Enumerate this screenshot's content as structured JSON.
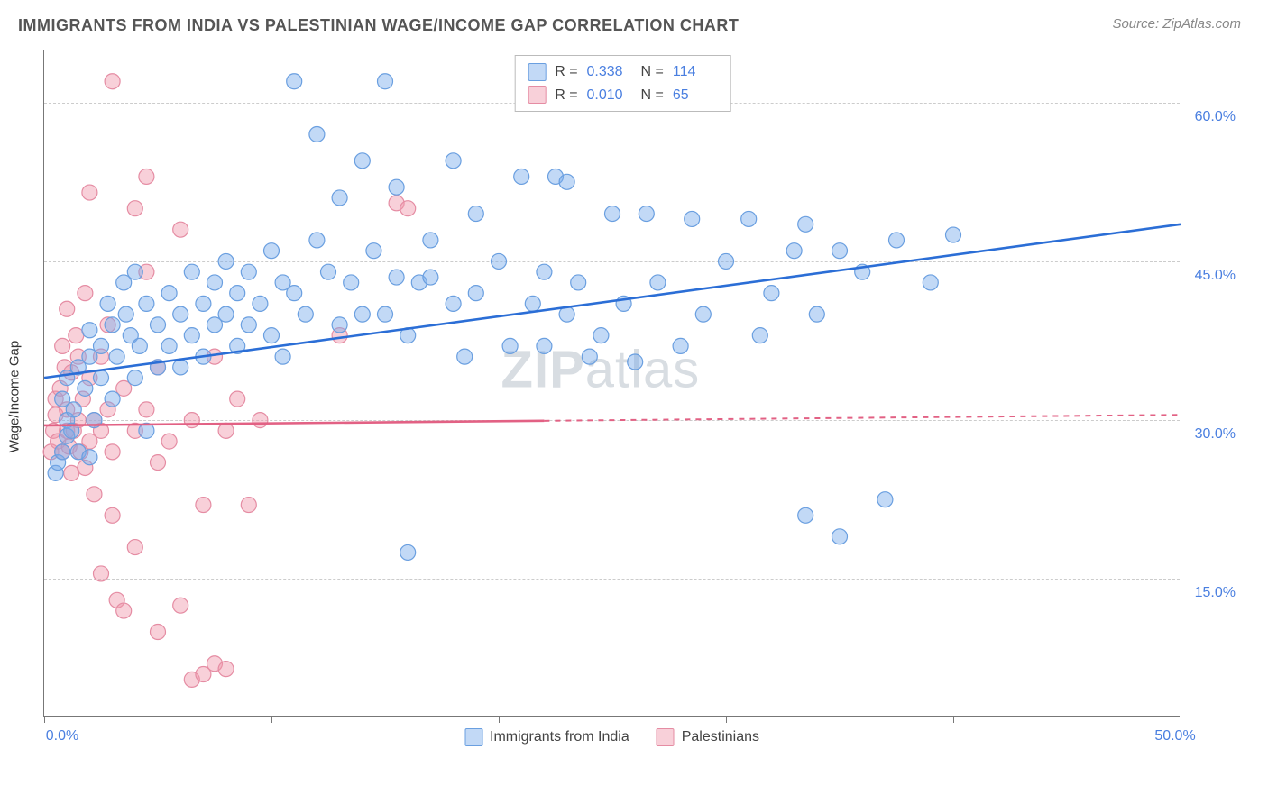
{
  "header": {
    "title": "IMMIGRANTS FROM INDIA VS PALESTINIAN WAGE/INCOME GAP CORRELATION CHART",
    "source": "Source: ZipAtlas.com"
  },
  "watermark": {
    "bold": "ZIP",
    "light": "atlas"
  },
  "chart": {
    "type": "scatter",
    "ylabel": "Wage/Income Gap",
    "xlim": [
      0,
      50
    ],
    "ylim": [
      2,
      65
    ],
    "xticks": [
      0,
      10,
      20,
      30,
      40,
      50
    ],
    "xtick_labels": {
      "0": "0.0%",
      "50": "50.0%"
    },
    "ygrid": [
      15,
      30,
      45,
      60
    ],
    "ytick_labels": {
      "15": "15.0%",
      "30": "30.0%",
      "45": "45.0%",
      "60": "60.0%"
    },
    "grid_color": "#cccccc",
    "axis_color": "#777777",
    "tick_label_color": "#4a7fe0",
    "background": "#ffffff",
    "series": [
      {
        "id": "india",
        "label": "Immigrants from India",
        "fill": "rgba(120,170,235,0.45)",
        "stroke": "#6a9fe0",
        "line_color": "#2b6ed6",
        "marker_radius": 8.5,
        "R": "0.338",
        "N": "114",
        "trend": {
          "x1": 0,
          "y1": 34,
          "x2": 50,
          "y2": 48.5,
          "solid_until_x": 50
        },
        "points": [
          [
            0.5,
            25
          ],
          [
            0.6,
            26
          ],
          [
            0.8,
            27
          ],
          [
            1.0,
            28.5
          ],
          [
            1.0,
            30
          ],
          [
            0.8,
            32
          ],
          [
            1.2,
            29
          ],
          [
            1.3,
            31
          ],
          [
            1.5,
            27
          ],
          [
            1.0,
            34
          ],
          [
            1.5,
            35
          ],
          [
            1.8,
            33
          ],
          [
            2.0,
            36
          ],
          [
            2.0,
            38.5
          ],
          [
            2.2,
            30
          ],
          [
            2.5,
            34
          ],
          [
            2.5,
            37
          ],
          [
            2.8,
            41
          ],
          [
            3.0,
            32
          ],
          [
            2.0,
            26.5
          ],
          [
            3.0,
            39
          ],
          [
            3.2,
            36
          ],
          [
            3.5,
            43
          ],
          [
            3.6,
            40
          ],
          [
            3.8,
            38
          ],
          [
            4.0,
            44
          ],
          [
            4.0,
            34
          ],
          [
            4.2,
            37
          ],
          [
            4.5,
            41
          ],
          [
            4.5,
            29
          ],
          [
            5.0,
            35
          ],
          [
            5.0,
            39
          ],
          [
            5.5,
            37
          ],
          [
            5.5,
            42
          ],
          [
            6.0,
            40
          ],
          [
            6.0,
            35
          ],
          [
            6.5,
            44
          ],
          [
            6.5,
            38
          ],
          [
            7.0,
            41
          ],
          [
            7.0,
            36
          ],
          [
            7.5,
            43
          ],
          [
            7.5,
            39
          ],
          [
            8.0,
            40
          ],
          [
            8.0,
            45
          ],
          [
            8.5,
            37
          ],
          [
            8.5,
            42
          ],
          [
            9.0,
            44
          ],
          [
            9.0,
            39
          ],
          [
            9.5,
            41
          ],
          [
            10.0,
            38
          ],
          [
            10.0,
            46
          ],
          [
            10.5,
            43
          ],
          [
            10.5,
            36
          ],
          [
            11.0,
            42
          ],
          [
            11.0,
            62
          ],
          [
            11.5,
            40
          ],
          [
            12.0,
            47
          ],
          [
            12.0,
            57
          ],
          [
            12.5,
            44
          ],
          [
            13.0,
            39
          ],
          [
            13.0,
            51
          ],
          [
            13.5,
            43
          ],
          [
            14.0,
            40
          ],
          [
            14.0,
            54.5
          ],
          [
            14.5,
            46
          ],
          [
            15.0,
            62
          ],
          [
            15.0,
            40
          ],
          [
            15.5,
            43.5
          ],
          [
            16.0,
            17.5
          ],
          [
            16.0,
            38
          ],
          [
            16.5,
            43
          ],
          [
            17.0,
            47
          ],
          [
            17.0,
            43.5
          ],
          [
            18.0,
            54.5
          ],
          [
            18.0,
            41
          ],
          [
            18.5,
            36
          ],
          [
            19.0,
            49.5
          ],
          [
            19.0,
            42
          ],
          [
            20.0,
            45
          ],
          [
            20.5,
            37
          ],
          [
            21.0,
            53
          ],
          [
            21.5,
            41
          ],
          [
            22.0,
            44
          ],
          [
            22.0,
            37
          ],
          [
            22.5,
            53
          ],
          [
            23.0,
            40
          ],
          [
            23.5,
            43
          ],
          [
            24.0,
            36
          ],
          [
            24.5,
            38
          ],
          [
            25.0,
            49.5
          ],
          [
            25.5,
            41
          ],
          [
            26.0,
            35.5
          ],
          [
            26.5,
            49.5
          ],
          [
            27.0,
            43
          ],
          [
            28.0,
            37
          ],
          [
            28.5,
            49
          ],
          [
            29.0,
            40
          ],
          [
            30.0,
            45
          ],
          [
            31.0,
            49
          ],
          [
            31.5,
            38
          ],
          [
            32.0,
            42
          ],
          [
            33.0,
            46
          ],
          [
            33.5,
            48.5
          ],
          [
            33.5,
            21
          ],
          [
            34.0,
            40
          ],
          [
            35.0,
            46
          ],
          [
            35.0,
            19
          ],
          [
            36.0,
            44
          ],
          [
            37.0,
            22.5
          ],
          [
            37.5,
            47
          ],
          [
            39.0,
            43
          ],
          [
            40.0,
            47.5
          ],
          [
            23.0,
            52.5
          ],
          [
            15.5,
            52
          ]
        ]
      },
      {
        "id": "palestinian",
        "label": "Palestinians",
        "fill": "rgba(240,150,170,0.45)",
        "stroke": "#e58ca3",
        "line_color": "#e26184",
        "marker_radius": 8.5,
        "R": "0.010",
        "N": "65",
        "trend": {
          "x1": 0,
          "y1": 29.5,
          "x2": 50,
          "y2": 30.5,
          "solid_until_x": 22
        },
        "points": [
          [
            0.3,
            27
          ],
          [
            0.4,
            29
          ],
          [
            0.5,
            30.5
          ],
          [
            0.5,
            32
          ],
          [
            0.6,
            28
          ],
          [
            0.7,
            33
          ],
          [
            0.8,
            37
          ],
          [
            0.8,
            27
          ],
          [
            0.9,
            35
          ],
          [
            1.0,
            29
          ],
          [
            1.0,
            31
          ],
          [
            1.0,
            40.5
          ],
          [
            1.1,
            27.5
          ],
          [
            1.2,
            34.5
          ],
          [
            1.2,
            25
          ],
          [
            1.3,
            29
          ],
          [
            1.4,
            38
          ],
          [
            1.5,
            30
          ],
          [
            1.5,
            36
          ],
          [
            1.6,
            27
          ],
          [
            1.7,
            32
          ],
          [
            1.8,
            25.5
          ],
          [
            1.8,
            42
          ],
          [
            2.0,
            28
          ],
          [
            2.0,
            51.5
          ],
          [
            2.0,
            34
          ],
          [
            2.2,
            30
          ],
          [
            2.2,
            23
          ],
          [
            2.5,
            36
          ],
          [
            2.5,
            29
          ],
          [
            2.5,
            15.5
          ],
          [
            2.8,
            31
          ],
          [
            2.8,
            39
          ],
          [
            3.0,
            27
          ],
          [
            3.0,
            21
          ],
          [
            3.2,
            13
          ],
          [
            3.5,
            33
          ],
          [
            3.5,
            12
          ],
          [
            4.0,
            29
          ],
          [
            4.0,
            50
          ],
          [
            4.0,
            18
          ],
          [
            4.5,
            31
          ],
          [
            4.5,
            44
          ],
          [
            5.0,
            26
          ],
          [
            5.0,
            35
          ],
          [
            5.0,
            10
          ],
          [
            5.5,
            28
          ],
          [
            6.0,
            48
          ],
          [
            6.0,
            12.5
          ],
          [
            6.5,
            30
          ],
          [
            6.5,
            5.5
          ],
          [
            7.0,
            22
          ],
          [
            7.0,
            6
          ],
          [
            7.5,
            7
          ],
          [
            8.0,
            6.5
          ],
          [
            7.5,
            36
          ],
          [
            8.0,
            29
          ],
          [
            8.5,
            32
          ],
          [
            9.0,
            22
          ],
          [
            9.5,
            30
          ],
          [
            13.0,
            38
          ],
          [
            15.5,
            50.5
          ],
          [
            16.0,
            50
          ],
          [
            3.0,
            62
          ],
          [
            4.5,
            53
          ]
        ]
      }
    ]
  },
  "legend_top": {
    "r_label": "R =",
    "n_label": "N ="
  },
  "legend_bottom": {}
}
